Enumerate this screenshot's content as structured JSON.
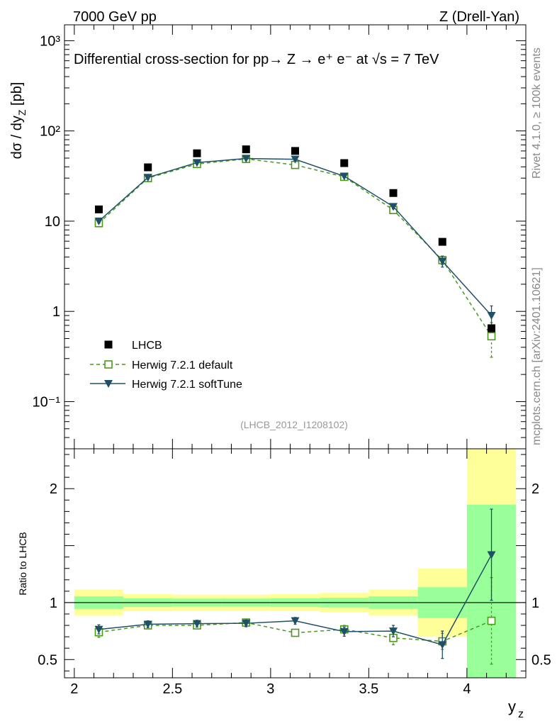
{
  "header": {
    "left": "7000 GeV pp",
    "right": "Z (Drell-Yan)"
  },
  "side_labels": {
    "rivet": "Rivet 4.1.0, ≥ 100k events",
    "mcplots": "mcplots.cern.ch [arXiv:2401.10621]"
  },
  "chart_data": [
    {
      "type": "scatter",
      "panel": "main",
      "title": "Differential cross-section for pp→ Z → e⁺ e⁻ at √s = 7 TeV",
      "ylabel": "dσ / dy_Z [pb]",
      "yscale": "log",
      "ylim": [
        0.03,
        1500
      ],
      "xlim": [
        1.95,
        4.3
      ],
      "watermark": "(LHCB_2012_I1208102)",
      "y_ticks": [
        {
          "value": 1000,
          "label": "10³"
        },
        {
          "value": 100,
          "label": "10²"
        },
        {
          "value": 10,
          "label": "10"
        },
        {
          "value": 1,
          "label": "1"
        },
        {
          "value": 0.1,
          "label": "10⁻¹"
        }
      ],
      "x": [
        2.125,
        2.375,
        2.625,
        2.875,
        3.125,
        3.375,
        3.625,
        3.875,
        4.125
      ],
      "series": [
        {
          "name": "LHCB",
          "marker": "filled-square",
          "color": "#000000",
          "values": [
            13.5,
            39.5,
            56.5,
            62.5,
            60,
            44,
            20.5,
            5.9,
            0.65
          ]
        },
        {
          "name": "Herwig 7.2.1 default",
          "marker": "open-square",
          "line": "dashed",
          "color": "#4a9a19",
          "values": [
            9.5,
            30,
            43,
            49,
            42,
            31,
            13.3,
            3.7,
            0.53
          ],
          "errors": [
            0.5,
            1,
            1.2,
            1.5,
            1.3,
            1,
            0.8,
            0.4,
            0.22
          ]
        },
        {
          "name": "Herwig 7.2.1 softTune",
          "marker": "filled-triangle-down",
          "line": "solid",
          "color": "#1f5068",
          "values": [
            10,
            30.5,
            44.5,
            49.5,
            48.5,
            31.5,
            14.5,
            3.6,
            0.9
          ],
          "errors": [
            0.5,
            1,
            1.2,
            1.5,
            1.5,
            1,
            0.8,
            0.5,
            0.25
          ]
        }
      ]
    },
    {
      "type": "scatter",
      "panel": "ratio",
      "ylabel": "Ratio to LHCB",
      "xlabel": "y_Z",
      "ylim": [
        0.34,
        2.35
      ],
      "xlim": [
        1.95,
        4.3
      ],
      "x_ticks": [
        {
          "value": 2,
          "label": "2"
        },
        {
          "value": 2.5,
          "label": "2.5"
        },
        {
          "value": 3,
          "label": "3"
        },
        {
          "value": 3.5,
          "label": "3.5"
        },
        {
          "value": 4,
          "label": "4"
        }
      ],
      "y_ticks": [
        {
          "value": 0.5,
          "label": "0.5"
        },
        {
          "value": 1,
          "label": "1"
        },
        {
          "value": 2,
          "label": "2"
        }
      ],
      "bands": [
        {
          "xlow": 2.0,
          "xhigh": 2.25,
          "inner": [
            0.945,
            1.055
          ],
          "outer": [
            0.885,
            1.115
          ]
        },
        {
          "xlow": 2.25,
          "xhigh": 2.5,
          "inner": [
            0.962,
            1.038
          ],
          "outer": [
            0.925,
            1.075
          ]
        },
        {
          "xlow": 2.5,
          "xhigh": 2.75,
          "inner": [
            0.965,
            1.035
          ],
          "outer": [
            0.93,
            1.07
          ]
        },
        {
          "xlow": 2.75,
          "xhigh": 3.0,
          "inner": [
            0.965,
            1.035
          ],
          "outer": [
            0.93,
            1.07
          ]
        },
        {
          "xlow": 3.0,
          "xhigh": 3.25,
          "inner": [
            0.963,
            1.037
          ],
          "outer": [
            0.925,
            1.075
          ]
        },
        {
          "xlow": 3.25,
          "xhigh": 3.5,
          "inner": [
            0.958,
            1.042
          ],
          "outer": [
            0.915,
            1.085
          ]
        },
        {
          "xlow": 3.5,
          "xhigh": 3.75,
          "inner": [
            0.945,
            1.055
          ],
          "outer": [
            0.885,
            1.115
          ]
        },
        {
          "xlow": 3.75,
          "xhigh": 4.0,
          "inner": [
            0.865,
            1.135
          ],
          "outer": [
            0.7,
            1.3
          ]
        },
        {
          "xlow": 4.0,
          "xhigh": 4.25,
          "inner": [
            0.34,
            1.86
          ],
          "outer": [
            0.34,
            2.35
          ]
        }
      ],
      "series": [
        {
          "name": "Herwig 7.2.1 default",
          "color": "#4a9a19",
          "values": [
            0.74,
            0.8,
            0.8,
            0.825,
            0.735,
            0.765,
            0.69,
            0.66,
            0.84
          ],
          "errors": [
            0.045,
            0.03,
            0.03,
            0.03,
            0.03,
            0.035,
            0.06,
            0.07,
            0.38
          ]
        },
        {
          "name": "Herwig 7.2.1 softTune",
          "color": "#1f5068",
          "values": [
            0.765,
            0.81,
            0.815,
            0.818,
            0.84,
            0.745,
            0.75,
            0.63,
            1.42
          ],
          "errors": [
            0.04,
            0.03,
            0.03,
            0.03,
            0.03,
            0.04,
            0.05,
            0.12,
            0.4
          ]
        }
      ]
    }
  ]
}
